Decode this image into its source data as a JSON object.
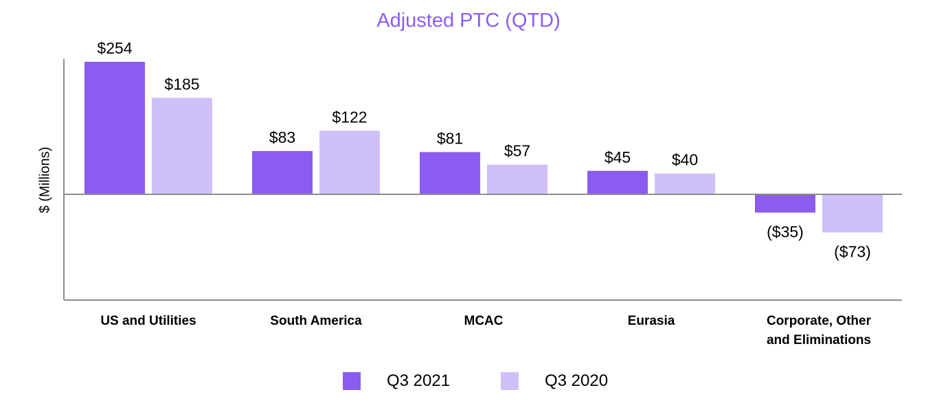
{
  "chart_data": {
    "type": "bar",
    "title": "Adjusted PTC (QTD)",
    "xlabel": "",
    "ylabel": "$ (Millions)",
    "ylim": [
      -200,
      254
    ],
    "categories": [
      [
        "US and Utilities"
      ],
      [
        "South America"
      ],
      [
        "MCAC"
      ],
      [
        "Eurasia"
      ],
      [
        "Corporate, Other",
        "and Eliminations"
      ]
    ],
    "series": [
      {
        "name": "Q3 2021",
        "color": "#8b5cf0",
        "values": [
          254,
          83,
          81,
          45,
          -35
        ],
        "labels": [
          "$254",
          "$83",
          "$81",
          "$45",
          "($35)"
        ]
      },
      {
        "name": "Q3 2020",
        "color": "#d0c0f8",
        "values": [
          185,
          122,
          57,
          40,
          -73
        ],
        "labels": [
          "$185",
          "$122",
          "$57",
          "$40",
          "($73)"
        ]
      }
    ],
    "legend_position": "bottom",
    "grid": false
  }
}
